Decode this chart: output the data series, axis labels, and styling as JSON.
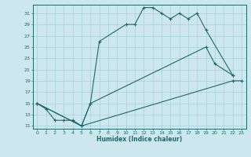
{
  "xlabel": "Humidex (Indice chaleur)",
  "bg_color": "#cce8ee",
  "grid_color": "#aacfd8",
  "line_color": "#1a6b6b",
  "xlim": [
    -0.5,
    23.5
  ],
  "ylim": [
    10.5,
    32.5
  ],
  "xticks": [
    0,
    1,
    2,
    3,
    4,
    5,
    6,
    7,
    8,
    9,
    10,
    11,
    12,
    13,
    14,
    15,
    16,
    17,
    18,
    19,
    20,
    21,
    22,
    23
  ],
  "yticks": [
    11,
    13,
    15,
    17,
    19,
    21,
    23,
    25,
    27,
    29,
    31
  ],
  "line1_x": [
    0,
    1,
    2,
    3,
    4,
    5,
    6,
    7,
    10,
    11,
    12,
    13,
    14,
    15,
    16,
    17,
    18,
    19,
    22
  ],
  "line1_y": [
    15,
    14,
    12,
    12,
    12,
    11,
    15,
    26,
    29,
    29,
    32,
    32,
    31,
    30,
    31,
    30,
    31,
    28,
    20
  ],
  "line2_x": [
    0,
    5,
    6,
    19,
    20,
    22
  ],
  "line2_y": [
    15,
    11,
    15,
    25,
    22,
    20
  ],
  "line3_x": [
    0,
    5,
    22,
    23
  ],
  "line3_y": [
    15,
    11,
    19,
    19
  ]
}
